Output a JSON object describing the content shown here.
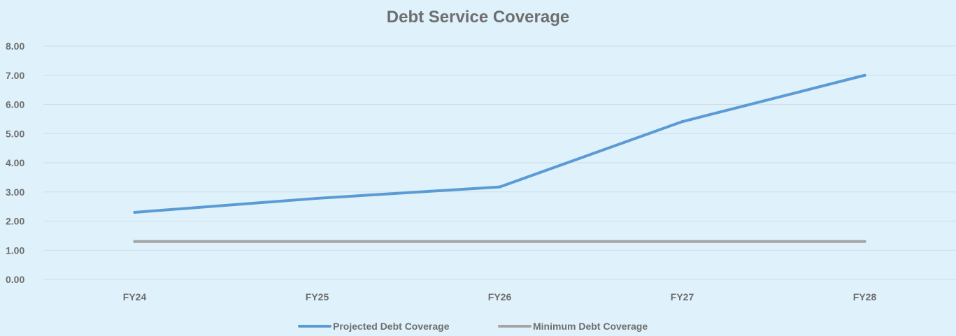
{
  "chart_data": {
    "type": "line",
    "title": "Debt Service Coverage",
    "categories": [
      "FY24",
      "FY25",
      "FY26",
      "FY27",
      "FY28"
    ],
    "series": [
      {
        "name": "Projected Debt Coverage",
        "values": [
          2.3,
          2.78,
          3.17,
          5.41,
          7.0
        ],
        "color": "#5b9bd5"
      },
      {
        "name": "Minimum Debt Coverage",
        "values": [
          1.3,
          1.3,
          1.3,
          1.3,
          1.3
        ],
        "color": "#a5a5a5"
      }
    ],
    "ylim": [
      0,
      8
    ],
    "yticks": [
      "0.00",
      "1.00",
      "2.00",
      "3.00",
      "4.00",
      "5.00",
      "6.00",
      "7.00",
      "8.00"
    ],
    "xlabel": "",
    "ylabel": "",
    "grid": true,
    "legend": "bottom-center"
  }
}
